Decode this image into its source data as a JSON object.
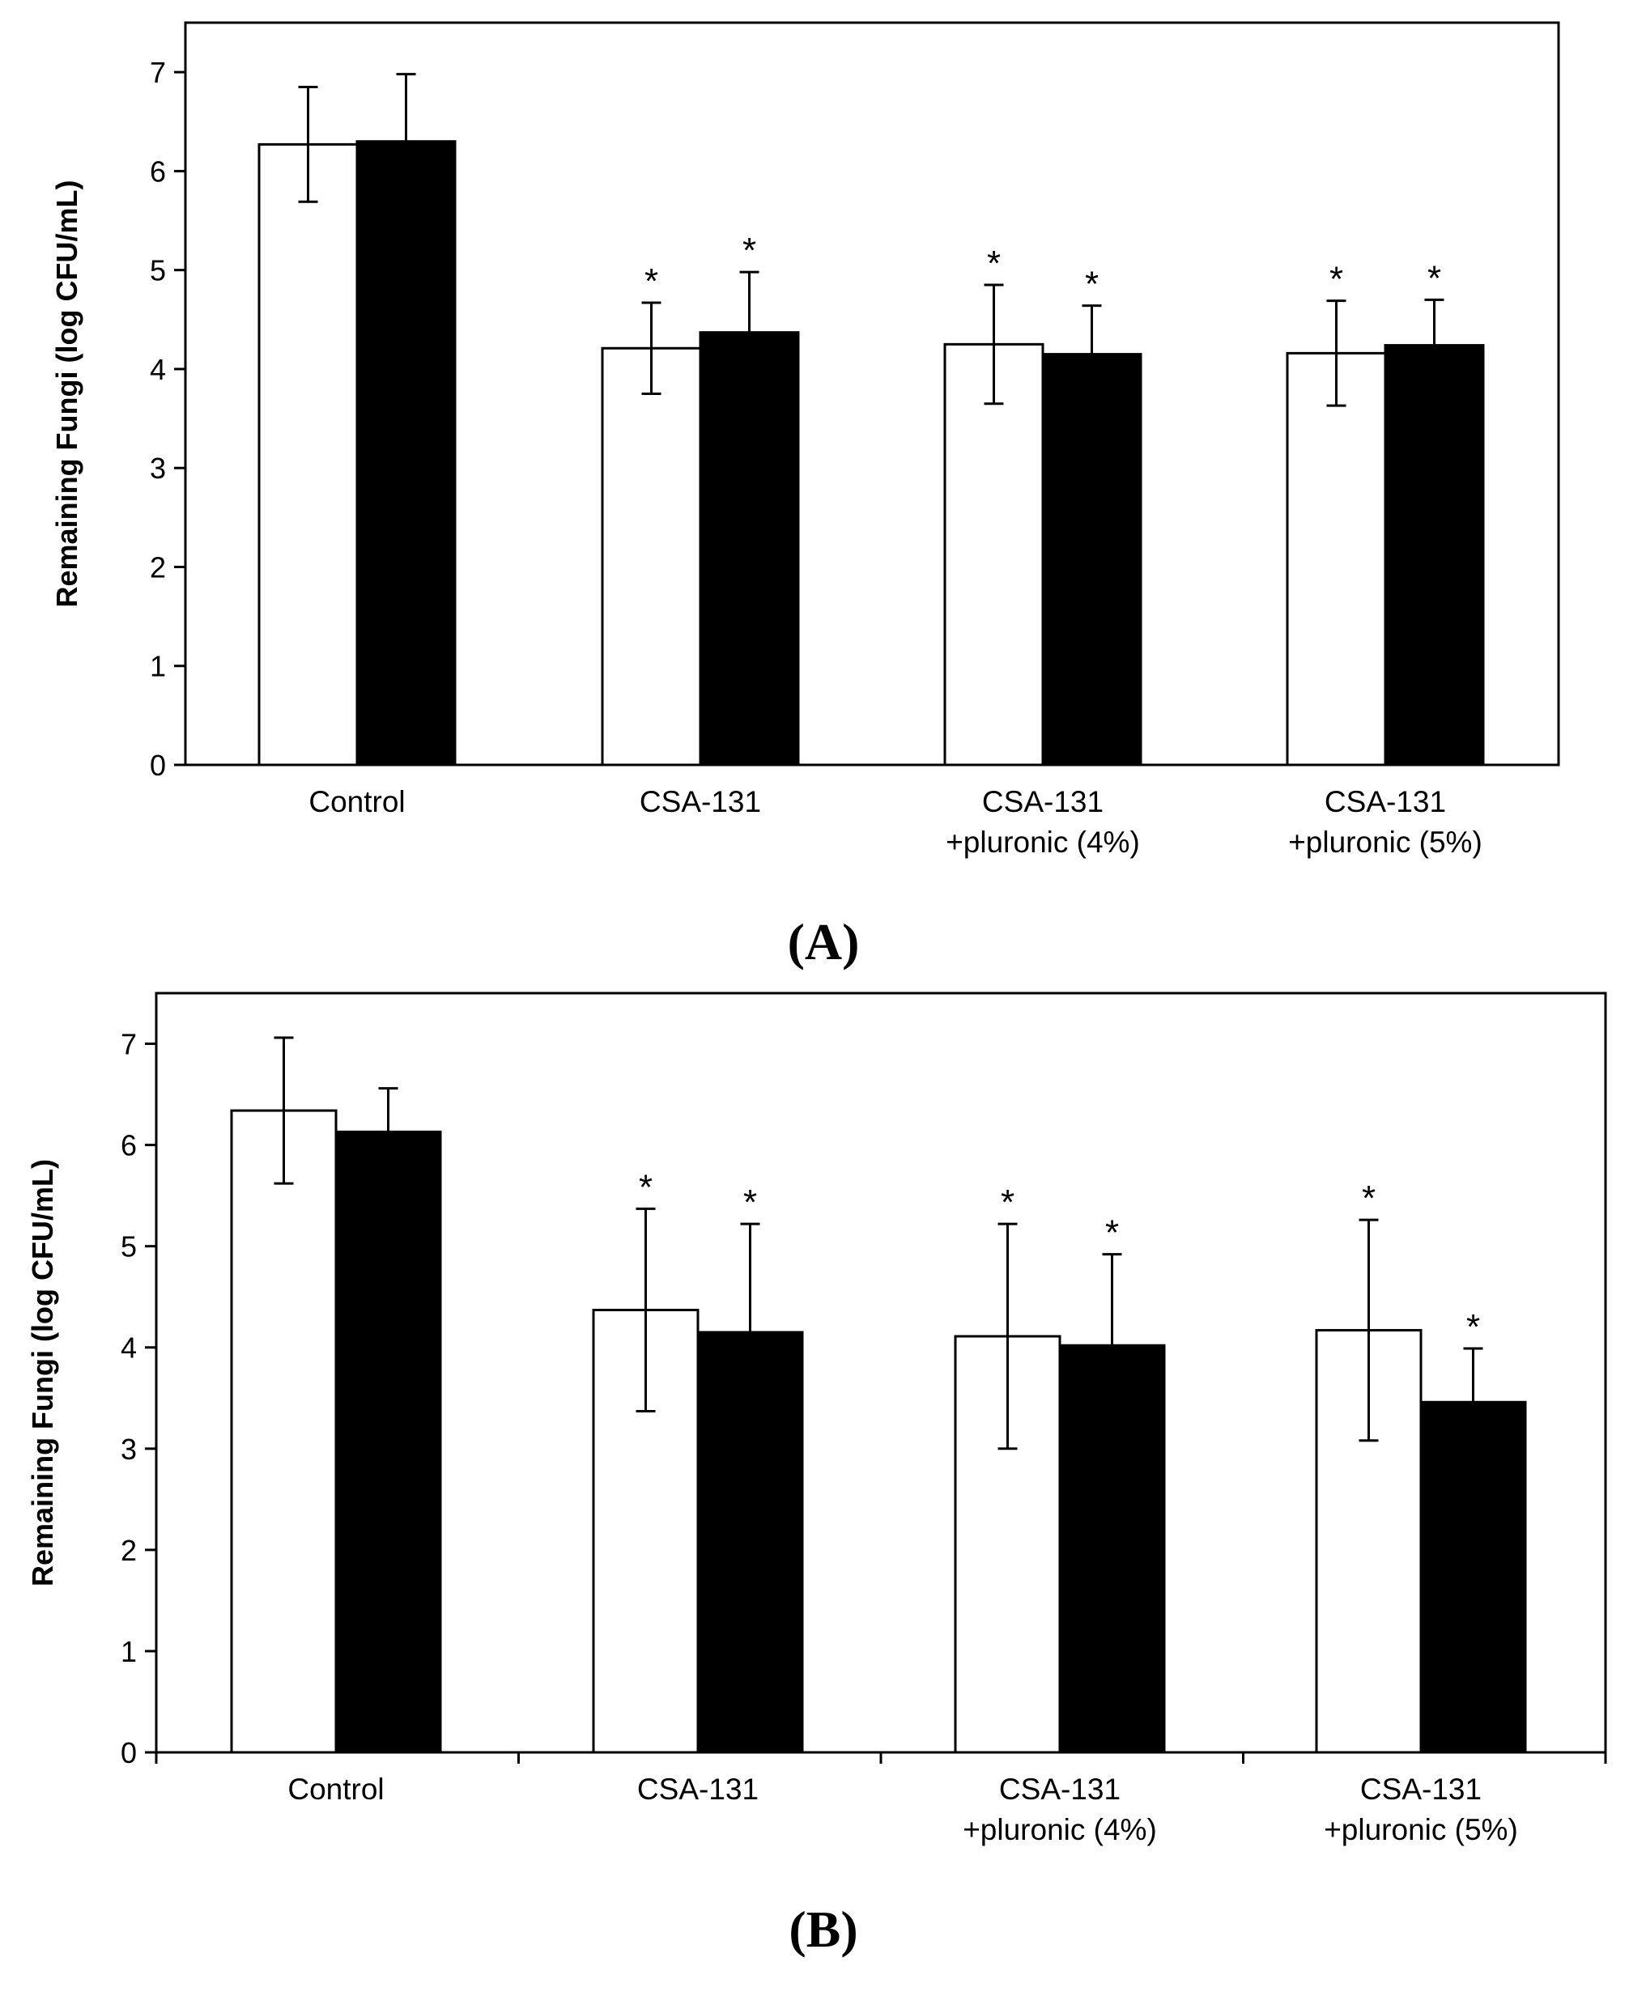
{
  "chart_data": [
    {
      "type": "bar",
      "panel_label": "(A)",
      "ylabel": "Remaining Fungi (log CFU/mL)",
      "xlabel": "",
      "ylim": [
        0,
        7.5
      ],
      "yticks": [
        "0",
        "1",
        "2",
        "3",
        "4",
        "5",
        "6",
        "7"
      ],
      "categories": [
        [
          "Control"
        ],
        [
          "CSA-131"
        ],
        [
          "CSA-131",
          "+pluronic (4%)"
        ],
        [
          "CSA-131",
          "+pluronic (5%)"
        ]
      ],
      "series": [
        {
          "name": "white",
          "color": "#ffffff",
          "values": [
            6.27,
            4.21,
            4.25,
            4.16
          ],
          "errors": [
            0.58,
            0.46,
            0.6,
            0.53
          ],
          "significance": [
            "",
            "*",
            "*",
            "*"
          ]
        },
        {
          "name": "black",
          "color": "#000000",
          "values": [
            6.3,
            4.37,
            4.15,
            4.24
          ],
          "errors": [
            0.68,
            0.61,
            0.49,
            0.46
          ],
          "significance": [
            "",
            "*",
            "*",
            "*"
          ]
        }
      ],
      "category_dividers": false
    },
    {
      "type": "bar",
      "panel_label": "(B)",
      "ylabel": "Remaining Fungi (log CFU/mL)",
      "xlabel": "",
      "ylim": [
        0,
        7.5
      ],
      "yticks": [
        "0",
        "1",
        "2",
        "3",
        "4",
        "5",
        "6",
        "7"
      ],
      "categories": [
        [
          "Control"
        ],
        [
          "CSA-131"
        ],
        [
          "CSA-131",
          "+pluronic (4%)"
        ],
        [
          "CSA-131",
          "+pluronic (5%)"
        ]
      ],
      "series": [
        {
          "name": "white",
          "color": "#ffffff",
          "values": [
            6.34,
            4.37,
            4.11,
            4.17
          ],
          "errors": [
            0.72,
            1.0,
            1.11,
            1.09
          ],
          "significance": [
            "",
            "*",
            "*",
            "*"
          ]
        },
        {
          "name": "black",
          "color": "#000000",
          "values": [
            6.13,
            4.15,
            4.02,
            3.46
          ],
          "errors": [
            0.43,
            1.07,
            0.9,
            0.53
          ],
          "significance": [
            "",
            "*",
            "*",
            "*"
          ]
        }
      ],
      "category_dividers": true
    }
  ]
}
